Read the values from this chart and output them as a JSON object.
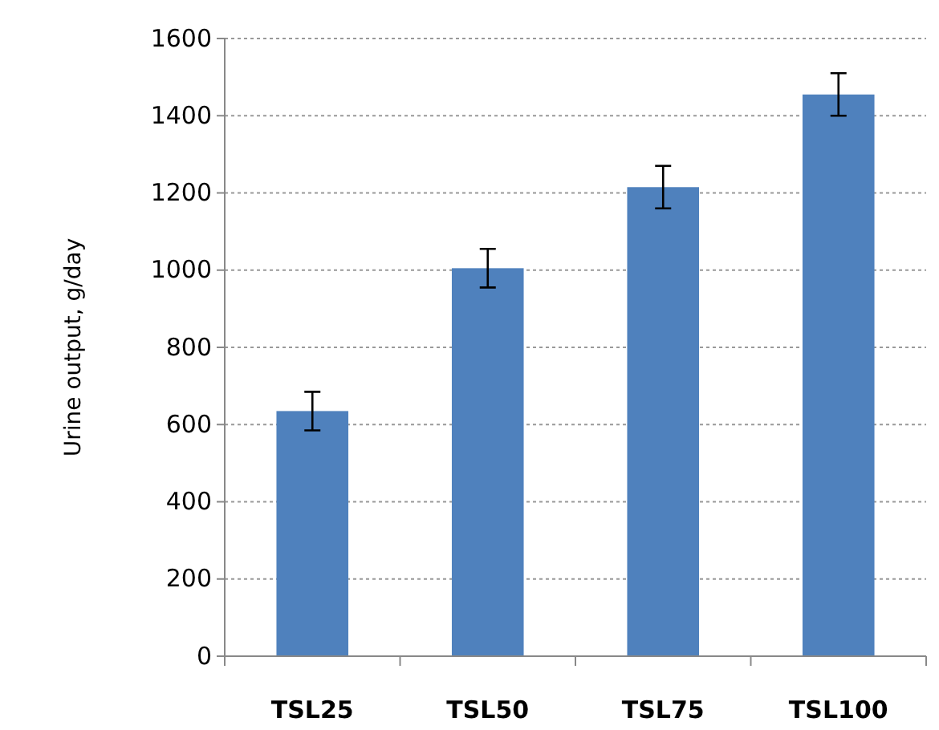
{
  "chart_data": {
    "type": "bar",
    "ylabel": "Urine output, g/day",
    "categories": [
      "TSL25",
      "TSL50",
      "TSL75",
      "TSL100"
    ],
    "values": [
      635,
      1005,
      1215,
      1455
    ],
    "errors": [
      50,
      50,
      55,
      55
    ],
    "color": "#4f81bd",
    "ylim": [
      0,
      1600
    ],
    "yticks": [
      0,
      200,
      400,
      600,
      800,
      1000,
      1200,
      1400,
      1600
    ],
    "grid": "y"
  }
}
